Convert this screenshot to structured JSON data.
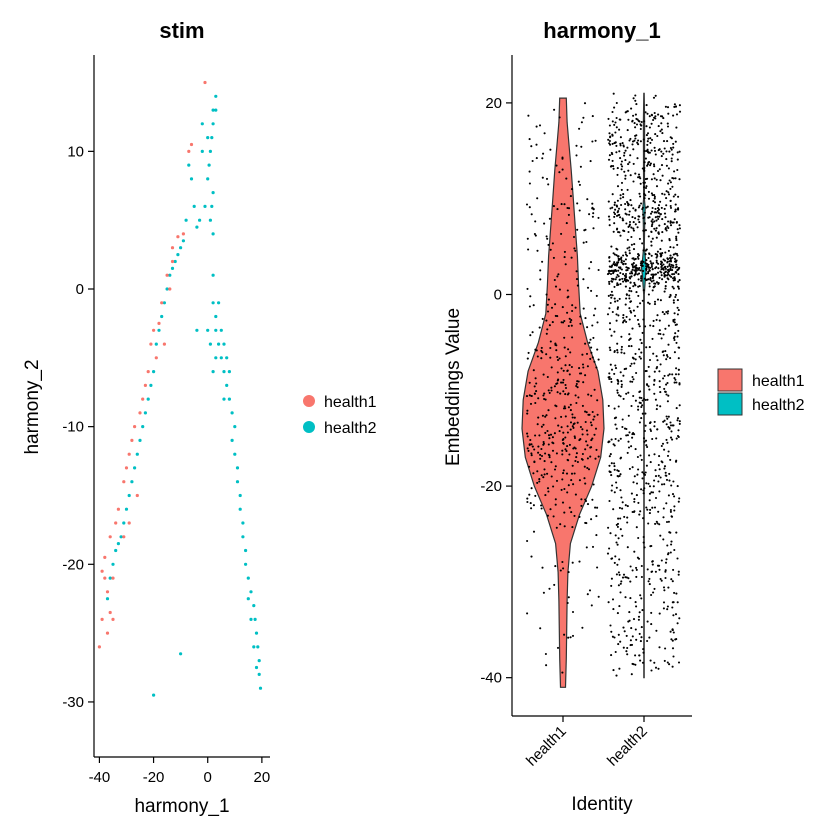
{
  "colors": {
    "health1": "#F8766D",
    "health2": "#00BFC4",
    "axis": "#000000",
    "jitter_points": "#000000"
  },
  "chart_data": [
    {
      "type": "scatter",
      "title": "stim",
      "xlabel": "harmony_1",
      "ylabel": "harmony_2",
      "xlim": [
        -42,
        23
      ],
      "ylim": [
        -34,
        17
      ],
      "xticks": [
        "-40",
        "-20",
        "0",
        "20"
      ],
      "yticks": [
        "-30",
        "-20",
        "-10",
        "0",
        "10"
      ],
      "grid": false,
      "legend": "right",
      "series": [
        {
          "name": "health1",
          "color": "#F8766D",
          "points": [
            [
              -39,
              -20.5
            ],
            [
              -38,
              -21
            ],
            [
              -37,
              -22
            ],
            [
              -36,
              -23.5
            ],
            [
              -35,
              -24
            ],
            [
              -38,
              -19.5
            ],
            [
              -36,
              -18
            ],
            [
              -33,
              -16
            ],
            [
              -31,
              -14
            ],
            [
              -29,
              -12
            ],
            [
              -27,
              -10
            ],
            [
              -25,
              -9
            ],
            [
              -22,
              -6
            ],
            [
              -20,
              -3
            ],
            [
              -17,
              -1
            ],
            [
              -15,
              1
            ],
            [
              -13,
              3
            ],
            [
              -11,
              3.8
            ],
            [
              -7,
              10
            ],
            [
              -6,
              10.5
            ],
            [
              -1,
              15
            ],
            [
              -40,
              -26
            ],
            [
              -39,
              -24
            ],
            [
              -37,
              -25
            ],
            [
              -35,
              -21
            ],
            [
              -31,
              -18
            ],
            [
              -29,
              -17
            ],
            [
              -26,
              -15
            ],
            [
              -24,
              -8
            ],
            [
              -21,
              -4
            ],
            [
              -18,
              -2.5
            ],
            [
              -13,
              2
            ],
            [
              -9,
              4
            ],
            [
              -16,
              -4
            ],
            [
              -19,
              -5
            ],
            [
              -30,
              -13
            ],
            [
              -34,
              -17
            ],
            [
              -28,
              -11
            ],
            [
              -23,
              -7
            ],
            [
              -14,
              0
            ]
          ]
        },
        {
          "name": "health2",
          "color": "#00BFC4",
          "points": [
            [
              0,
              8
            ],
            [
              1,
              10
            ],
            [
              2,
              12
            ],
            [
              3,
              13
            ],
            [
              0.5,
              9
            ],
            [
              1.5,
              11
            ],
            [
              2,
              7
            ],
            [
              3,
              14
            ],
            [
              -1,
              6
            ],
            [
              -3,
              5
            ],
            [
              -5,
              6
            ],
            [
              -6,
              8
            ],
            [
              -7,
              9
            ],
            [
              -2,
              10
            ],
            [
              1,
              5
            ],
            [
              2,
              4
            ],
            [
              -4,
              4.5
            ],
            [
              -8,
              5
            ],
            [
              -10,
              3
            ],
            [
              -12,
              2
            ],
            [
              -14,
              1
            ],
            [
              -11,
              2.5
            ],
            [
              -9,
              3.5
            ],
            [
              -13,
              1.5
            ],
            [
              -15,
              0
            ],
            [
              -16,
              -1
            ],
            [
              -17,
              -2
            ],
            [
              -18,
              -3
            ],
            [
              2,
              1
            ],
            [
              2,
              -1
            ],
            [
              3,
              -2
            ],
            [
              3,
              -3
            ],
            [
              4,
              -4
            ],
            [
              5,
              -5
            ],
            [
              6,
              -6
            ],
            [
              7,
              -7
            ],
            [
              8,
              -8
            ],
            [
              9,
              -9
            ],
            [
              10,
              -10
            ],
            [
              4,
              -1
            ],
            [
              5,
              -3
            ],
            [
              6,
              -4
            ],
            [
              7,
              -5
            ],
            [
              8,
              -6
            ],
            [
              9,
              -11
            ],
            [
              10,
              -12
            ],
            [
              11,
              -14
            ],
            [
              12,
              -16
            ],
            [
              13,
              -18
            ],
            [
              14,
              -20
            ],
            [
              15,
              -21
            ],
            [
              16,
              -22
            ],
            [
              17,
              -23
            ],
            [
              17.5,
              -24
            ],
            [
              18,
              -25
            ],
            [
              18.5,
              -26
            ],
            [
              19,
              -27
            ],
            [
              19,
              -28
            ],
            [
              19.5,
              -29
            ],
            [
              15,
              -22.5
            ],
            [
              16,
              -24
            ],
            [
              17,
              -26
            ],
            [
              18,
              -27.5
            ],
            [
              14,
              -19
            ],
            [
              13,
              -17
            ],
            [
              -20,
              -6
            ],
            [
              -22,
              -8
            ],
            [
              -24,
              -10
            ],
            [
              -26,
              -12
            ],
            [
              -28,
              -14
            ],
            [
              -30,
              -16
            ],
            [
              -32,
              -18
            ],
            [
              -34,
              -19
            ],
            [
              -36,
              -21
            ],
            [
              -37,
              -22.5
            ],
            [
              -23,
              -9
            ],
            [
              -25,
              -11
            ],
            [
              -27,
              -13
            ],
            [
              -29,
              -15
            ],
            [
              -31,
              -17
            ],
            [
              -33,
              -18.5
            ],
            [
              -35,
              -20
            ],
            [
              -19,
              -4
            ],
            [
              -21,
              -7
            ],
            [
              2,
              -6
            ],
            [
              1,
              -4
            ],
            [
              0,
              -3
            ],
            [
              -20,
              -29.5
            ],
            [
              -10,
              -26.5
            ],
            [
              -4,
              -3
            ],
            [
              2,
              13
            ],
            [
              1.5,
              6
            ],
            [
              0,
              11
            ],
            [
              -2,
              12
            ],
            [
              3,
              -5
            ],
            [
              6,
              -8
            ],
            [
              11,
              -13
            ],
            [
              12,
              -15
            ]
          ]
        }
      ]
    },
    {
      "type": "violin",
      "title": "harmony_1",
      "xlabel": "Identity",
      "ylabel": "Embeddings Value",
      "ylim": [
        -44,
        25
      ],
      "yticks": [
        "-40",
        "-20",
        "0",
        "20"
      ],
      "categories": [
        "health1",
        "health2"
      ],
      "grid": false,
      "legend": "right",
      "series": [
        {
          "name": "health1",
          "color": "#F8766D",
          "min": -41,
          "max": 20.5,
          "density": [
            [
              -41,
              0.06
            ],
            [
              -38,
              0.08
            ],
            [
              -35,
              0.09
            ],
            [
              -32,
              0.1
            ],
            [
              -29,
              0.12
            ],
            [
              -26,
              0.18
            ],
            [
              -23,
              0.4
            ],
            [
              -20,
              0.7
            ],
            [
              -17,
              0.92
            ],
            [
              -14,
              1.0
            ],
            [
              -11,
              0.97
            ],
            [
              -8,
              0.85
            ],
            [
              -5,
              0.6
            ],
            [
              -2,
              0.42
            ],
            [
              1,
              0.38
            ],
            [
              4,
              0.35
            ],
            [
              7,
              0.3
            ],
            [
              10,
              0.25
            ],
            [
              13,
              0.2
            ],
            [
              16,
              0.14
            ],
            [
              18,
              0.1
            ],
            [
              20.5,
              0.08
            ]
          ]
        },
        {
          "name": "health2",
          "color": "#00BFC4",
          "min": -40,
          "max": 21,
          "density": [
            [
              -40,
              0.005
            ],
            [
              -20,
              0.006
            ],
            [
              0,
              0.008
            ],
            [
              2,
              0.04
            ],
            [
              2.8,
              0.06
            ],
            [
              3.5,
              0.04
            ],
            [
              5,
              0.008
            ],
            [
              8,
              0.02
            ],
            [
              9,
              0.03
            ],
            [
              10,
              0.01
            ],
            [
              18,
              0.015
            ],
            [
              21,
              0.005
            ]
          ]
        }
      ]
    }
  ]
}
